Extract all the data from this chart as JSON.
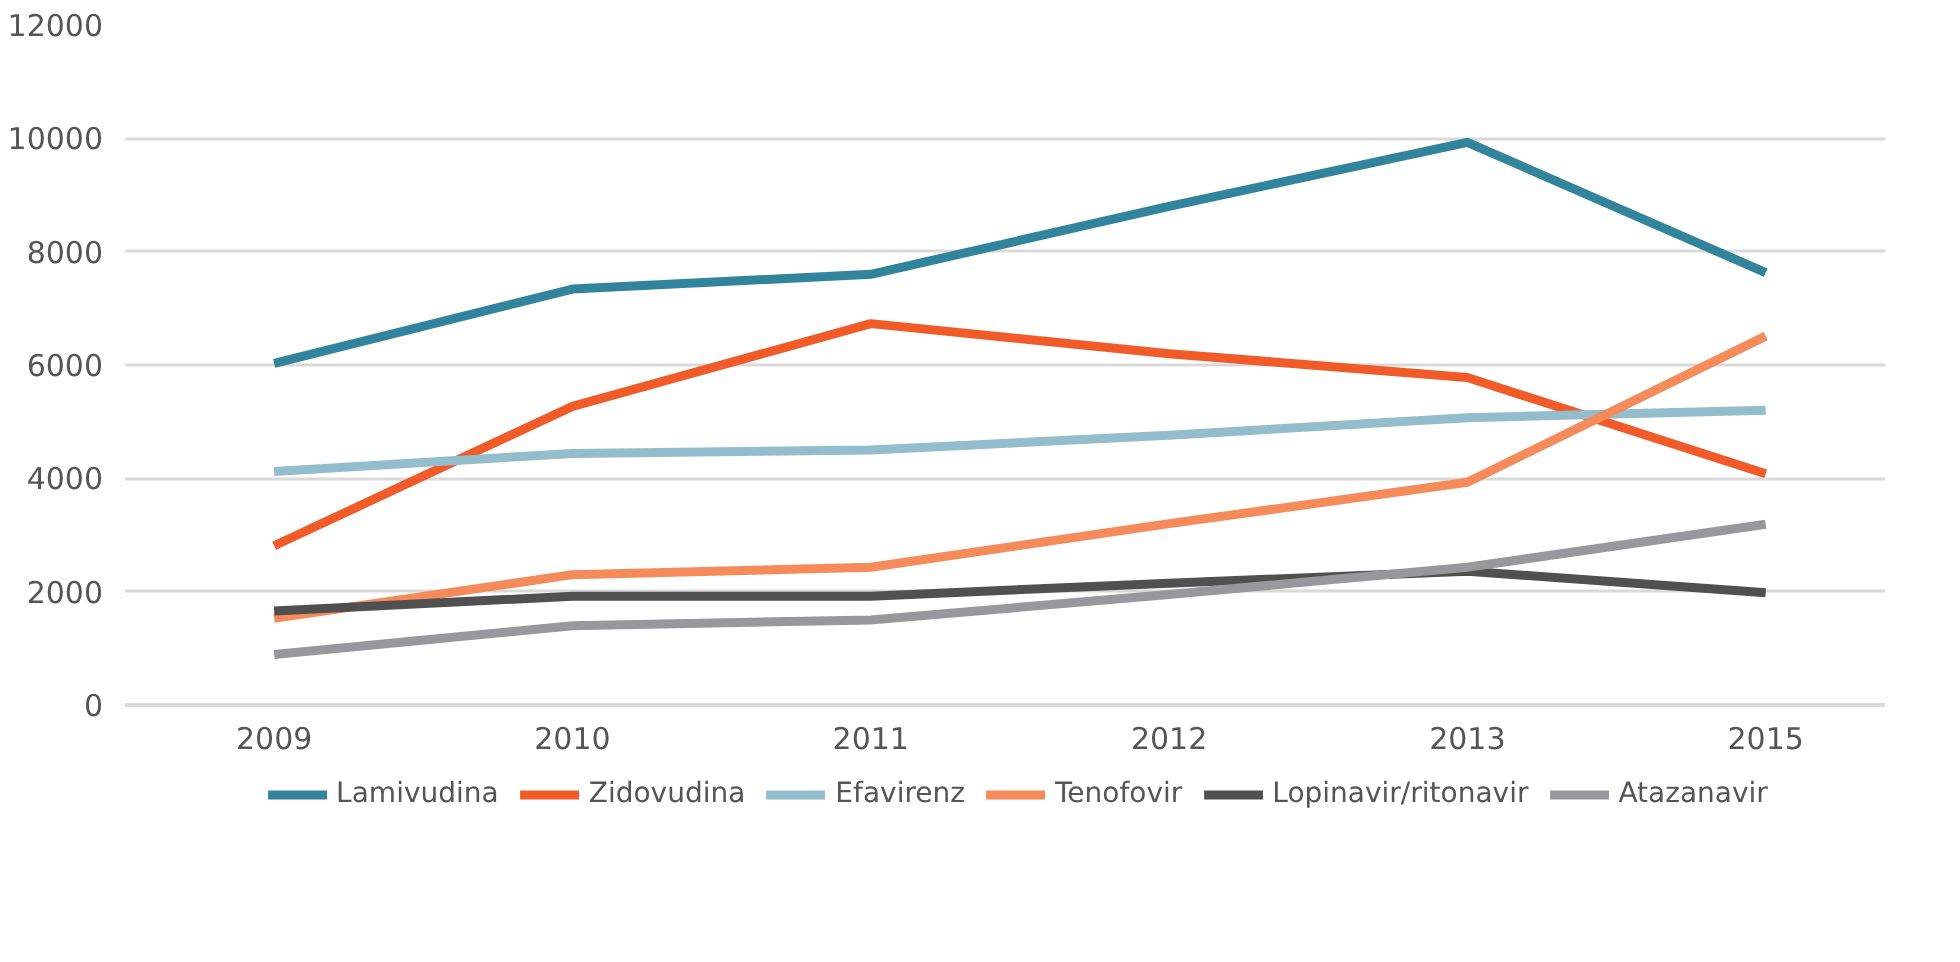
{
  "chart_data": {
    "type": "line",
    "categories": [
      "2009",
      "2010",
      "2011",
      "2012",
      "2013",
      "2015"
    ],
    "ylim": [
      0,
      12000
    ],
    "yticks": [
      0,
      2000,
      4000,
      6000,
      8000,
      10000,
      12000
    ],
    "grid": "y",
    "legend": "bottom",
    "line_style": "solid",
    "marker": "none",
    "series": [
      {
        "name": "Lamivudina",
        "color": "#31849b",
        "values": [
          6030,
          7340,
          7600,
          8800,
          9930,
          7630
        ]
      },
      {
        "name": "Zidovudina",
        "color": "#f15a29",
        "values": [
          2810,
          5270,
          6730,
          6200,
          5780,
          4080
        ]
      },
      {
        "name": "Efavirenz",
        "color": "#93bccc",
        "values": [
          4120,
          4440,
          4500,
          4760,
          5070,
          5200
        ]
      },
      {
        "name": "Tenofovir",
        "color": "#f58a5b",
        "values": [
          1530,
          2300,
          2430,
          3200,
          3930,
          6510
        ]
      },
      {
        "name": "Lopinavir/ritonavir",
        "color": "#505050",
        "values": [
          1660,
          1920,
          1920,
          2150,
          2360,
          1980
        ]
      },
      {
        "name": "Atazanavir",
        "color": "#98989c",
        "values": [
          890,
          1400,
          1500,
          1950,
          2430,
          3190
        ]
      }
    ]
  }
}
